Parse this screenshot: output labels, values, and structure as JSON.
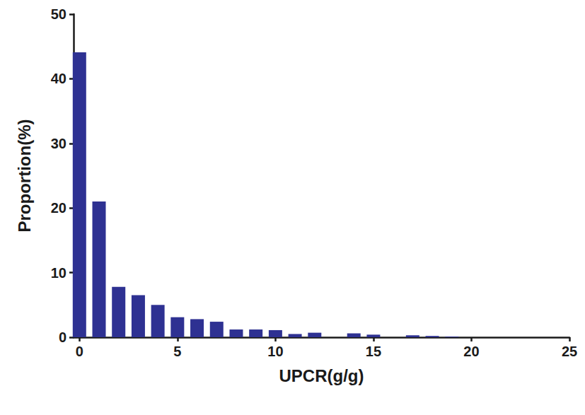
{
  "chart_data": {
    "type": "bar",
    "x": [
      0,
      1,
      2,
      3,
      4,
      5,
      6,
      7,
      8,
      9,
      10,
      11,
      12,
      13,
      14,
      15,
      16,
      17,
      18,
      19
    ],
    "values": [
      44.1,
      21.0,
      7.8,
      6.5,
      5.0,
      3.1,
      2.8,
      2.4,
      1.2,
      1.2,
      1.1,
      0.5,
      0.7,
      0,
      0.6,
      0.4,
      0,
      0.3,
      0.2,
      0.1
    ],
    "color": "#2e3192",
    "x_label": "UPCR(g/g)",
    "y_label": "Proportion(%)",
    "xlim": [
      -0.3,
      25
    ],
    "xticks": [
      0,
      5,
      10,
      15,
      20,
      25
    ],
    "ylim": [
      0,
      50
    ],
    "yticks": [
      0,
      10,
      20,
      30,
      40,
      50
    ],
    "grid": false
  }
}
